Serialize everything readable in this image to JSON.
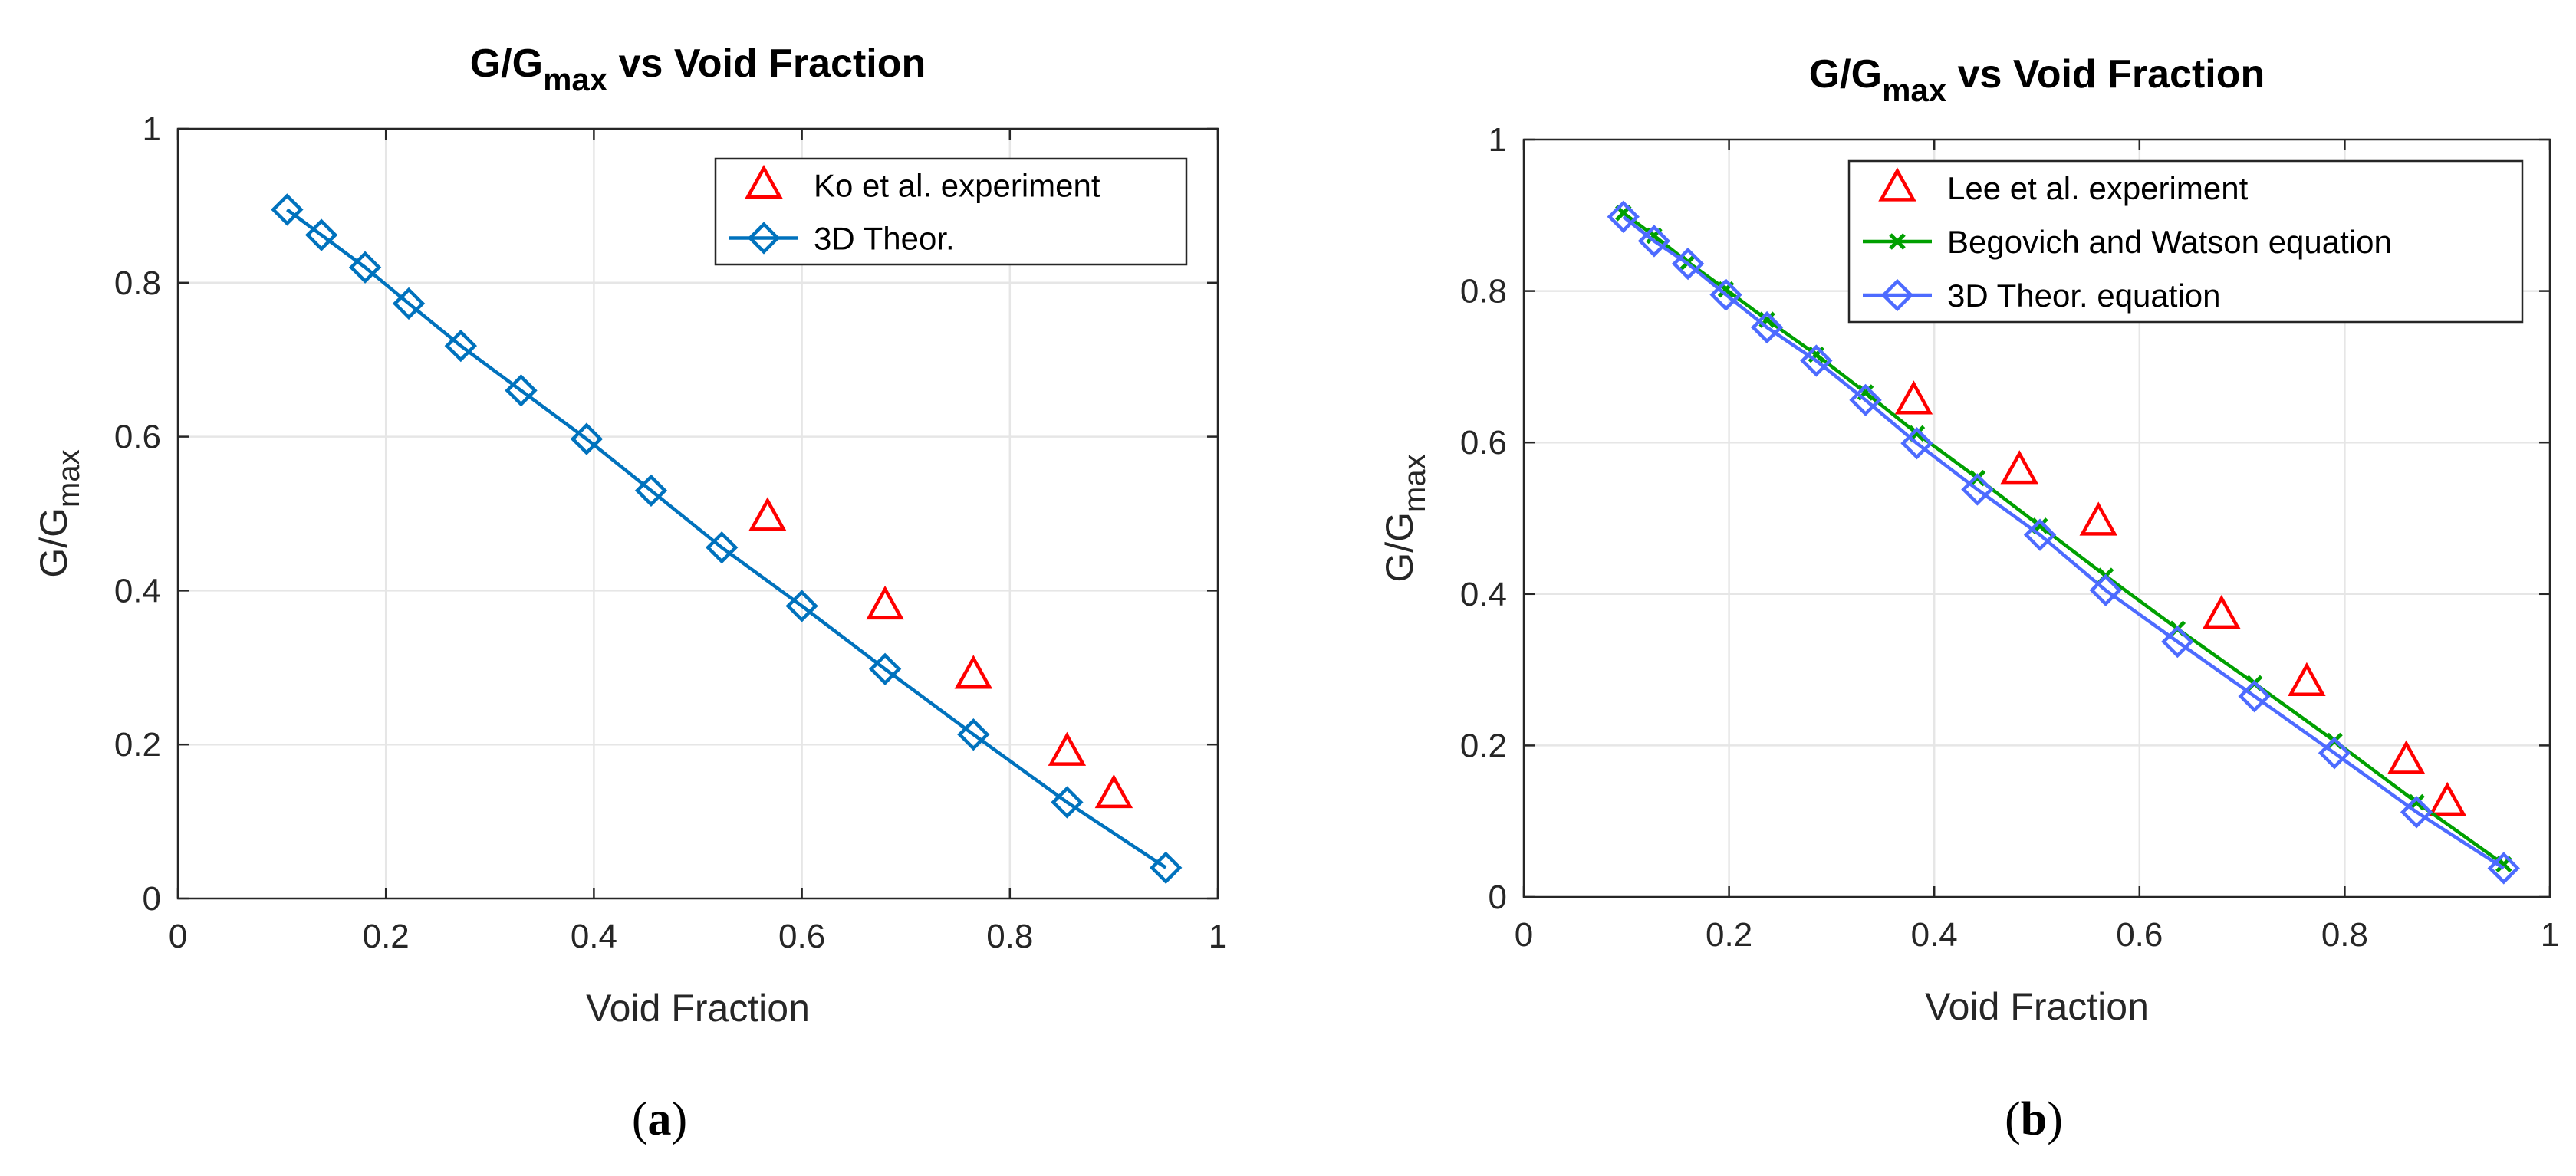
{
  "chart_data": [
    {
      "type": "line",
      "panel_label": "a",
      "title": "G/G",
      "title_sub": "max",
      "title_rest": " vs Void Fraction",
      "xlabel": "Void Fraction",
      "ylabel": "G/G",
      "ylabel_sub": "max",
      "xlim": [
        0,
        1
      ],
      "ylim": [
        0,
        1
      ],
      "xticks": [
        0,
        0.2,
        0.4,
        0.6,
        0.8,
        1
      ],
      "yticks": [
        0,
        0.2,
        0.4,
        0.6,
        0.8,
        1
      ],
      "xtick_labels": [
        "0",
        "0.2",
        "0.4",
        "0.6",
        "0.8",
        "1"
      ],
      "ytick_labels": [
        "0",
        "0.2",
        "0.4",
        "0.6",
        "0.8",
        "1"
      ],
      "grid": true,
      "legend_position": "top-right",
      "series": [
        {
          "name": "Ko et al. experiment",
          "marker": "triangle",
          "line": false,
          "color": "#ff0000",
          "x": [
            0.567,
            0.68,
            0.765,
            0.855,
            0.9
          ],
          "y": [
            0.495,
            0.38,
            0.29,
            0.19,
            0.135
          ]
        },
        {
          "name": "3D Theor.",
          "marker": "diamond",
          "line": true,
          "color": "#0072bd",
          "x": [
            0.105,
            0.138,
            0.18,
            0.222,
            0.272,
            0.33,
            0.393,
            0.455,
            0.523,
            0.6,
            0.68,
            0.765,
            0.855,
            0.95
          ],
          "y": [
            0.895,
            0.862,
            0.82,
            0.773,
            0.718,
            0.66,
            0.597,
            0.53,
            0.456,
            0.38,
            0.298,
            0.213,
            0.125,
            0.04
          ]
        }
      ]
    },
    {
      "type": "line",
      "panel_label": "b",
      "title": "G/G",
      "title_sub": "max",
      "title_rest": " vs Void Fraction",
      "xlabel": "Void Fraction",
      "ylabel": "G/G",
      "ylabel_sub": "max",
      "xlim": [
        0,
        1
      ],
      "ylim": [
        0,
        1
      ],
      "xticks": [
        0,
        0.2,
        0.4,
        0.6,
        0.8,
        1
      ],
      "yticks": [
        0,
        0.2,
        0.4,
        0.6,
        0.8,
        1
      ],
      "xtick_labels": [
        "0",
        "0.2",
        "0.4",
        "0.6",
        "0.8",
        "1"
      ],
      "ytick_labels": [
        "0",
        "0.2",
        "0.4",
        "0.6",
        "0.8",
        "1"
      ],
      "grid": true,
      "legend_position": "top-right",
      "series": [
        {
          "name": "Lee et al. experiment",
          "marker": "triangle",
          "line": false,
          "color": "#ff0000",
          "x": [
            0.38,
            0.483,
            0.56,
            0.68,
            0.763,
            0.86,
            0.9
          ],
          "y": [
            0.655,
            0.563,
            0.495,
            0.372,
            0.283,
            0.18,
            0.125
          ]
        },
        {
          "name": "Begovich and Watson equation",
          "marker": "x",
          "line": true,
          "color": "#00a000",
          "x": [
            0.097,
            0.127,
            0.16,
            0.197,
            0.237,
            0.285,
            0.333,
            0.383,
            0.442,
            0.503,
            0.567,
            0.637,
            0.712,
            0.79,
            0.87,
            0.955
          ],
          "y": [
            0.903,
            0.873,
            0.838,
            0.802,
            0.762,
            0.716,
            0.666,
            0.612,
            0.553,
            0.49,
            0.424,
            0.354,
            0.282,
            0.206,
            0.125,
            0.043
          ]
        },
        {
          "name": "3D Theor. equation",
          "marker": "diamond",
          "line": true,
          "color": "#4d6bff",
          "x": [
            0.097,
            0.127,
            0.16,
            0.197,
            0.237,
            0.285,
            0.333,
            0.383,
            0.442,
            0.503,
            0.567,
            0.637,
            0.712,
            0.79,
            0.87,
            0.955
          ],
          "y": [
            0.898,
            0.866,
            0.836,
            0.795,
            0.752,
            0.708,
            0.656,
            0.599,
            0.538,
            0.478,
            0.405,
            0.337,
            0.265,
            0.19,
            0.112,
            0.038
          ]
        }
      ]
    }
  ]
}
